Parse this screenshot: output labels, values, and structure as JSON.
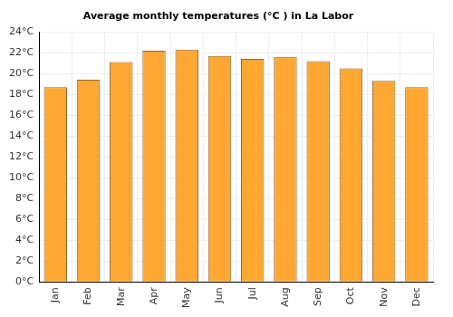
{
  "chart_data": {
    "type": "bar",
    "title": "Average monthly temperatures (°C ) in La Labor",
    "categories": [
      "Jan",
      "Feb",
      "Mar",
      "Apr",
      "May",
      "Jun",
      "Jul",
      "Aug",
      "Sep",
      "Oct",
      "Nov",
      "Dec"
    ],
    "values": [
      18.7,
      19.4,
      21.1,
      22.2,
      22.3,
      21.7,
      21.4,
      21.6,
      21.2,
      20.5,
      19.3,
      18.7
    ],
    "color": "#ffa733",
    "ylim": [
      0,
      24
    ],
    "yticks": [
      {
        "value": 0,
        "label": "0°C"
      },
      {
        "value": 2,
        "label": "2°C"
      },
      {
        "value": 4,
        "label": "4°C"
      },
      {
        "value": 6,
        "label": "6°C"
      },
      {
        "value": 8,
        "label": "8°C"
      },
      {
        "value": 10,
        "label": "10°C"
      },
      {
        "value": 12,
        "label": "12°C"
      },
      {
        "value": 14,
        "label": "14°C"
      },
      {
        "value": 16,
        "label": "16°C"
      },
      {
        "value": 18,
        "label": "18°C"
      },
      {
        "value": 20,
        "label": "20°C"
      },
      {
        "value": 22,
        "label": "22°C"
      },
      {
        "value": 24,
        "label": "24°C"
      }
    ],
    "grid": true
  }
}
